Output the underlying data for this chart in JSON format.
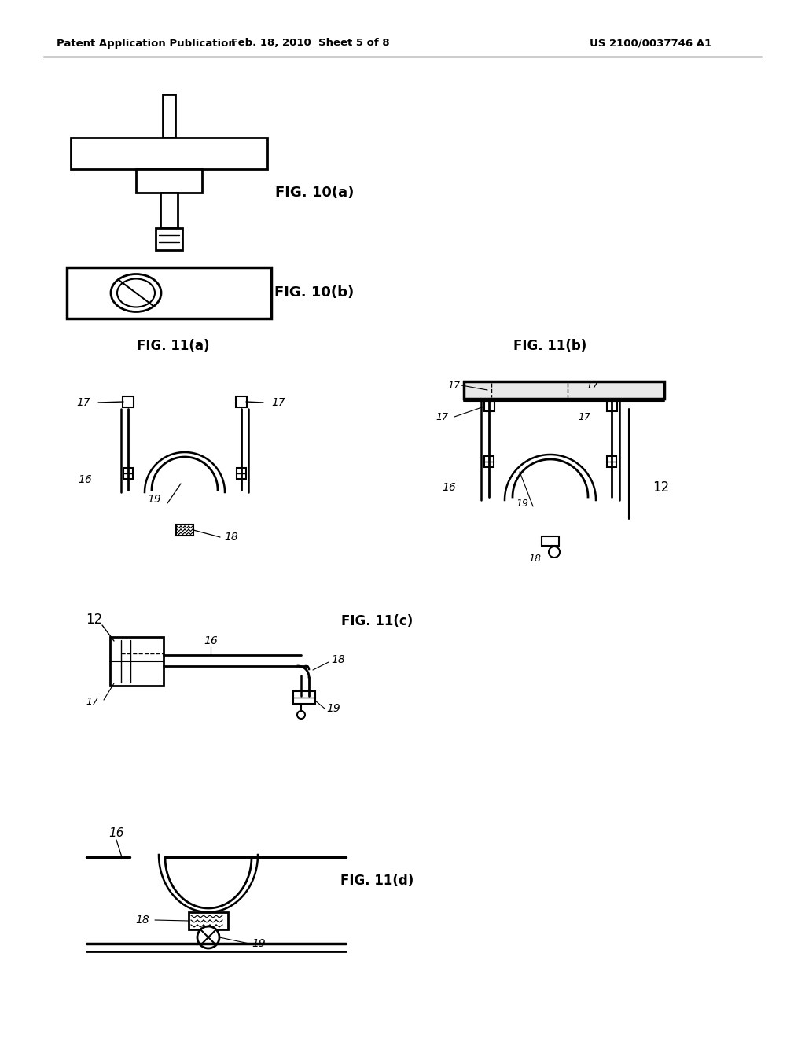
{
  "bg_color": "#ffffff",
  "header_left": "Patent Application Publication",
  "header_center": "Feb. 18, 2010  Sheet 5 of 8",
  "header_right": "US 2100/0037746 A1",
  "fig10a_label": "FIG. 10(a)",
  "fig10b_label": "FIG. 10(b)",
  "fig11a_label": "FIG. 11(a)",
  "fig11b_label": "FIG. 11(b)",
  "fig11c_label": "FIG. 11(c)",
  "fig11d_label": "FIG. 11(d)",
  "lc": "#000000"
}
